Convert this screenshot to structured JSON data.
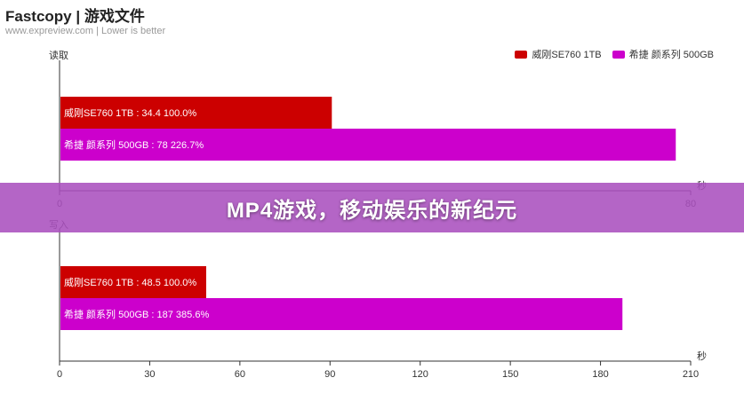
{
  "header": {
    "title": "Fastcopy | 游戏文件",
    "subtitle": "www.expreview.com | Lower is better"
  },
  "legend": [
    {
      "label": "威刚SE760 1TB",
      "color": "#cc0000"
    },
    {
      "label": "希捷 颜系列 500GB",
      "color": "#cc00cc"
    }
  ],
  "banner": {
    "text": "MP4游戏，移动娱乐的新纪元"
  },
  "chart_data": [
    {
      "type": "bar",
      "orientation": "horizontal",
      "title": "读取",
      "xlabel": "秒",
      "xlim": [
        0,
        80
      ],
      "xticks": [
        0,
        80
      ],
      "series": [
        {
          "name": "威刚SE760 1TB",
          "value": 34.4,
          "label": "威刚SE760 1TB : 34.4  100.0%",
          "color": "#cc0000"
        },
        {
          "name": "希捷 颜系列 500GB",
          "value": 78,
          "label": "希捷 颜系列 500GB : 78  226.7%",
          "color": "#cc00cc"
        }
      ]
    },
    {
      "type": "bar",
      "orientation": "horizontal",
      "title": "写入",
      "xlabel": "秒",
      "xlim": [
        0,
        210
      ],
      "xticks": [
        0,
        30,
        60,
        90,
        120,
        150,
        180,
        210
      ],
      "series": [
        {
          "name": "威刚SE760 1TB",
          "value": 48.5,
          "label": "威刚SE760 1TB : 48.5  100.0%",
          "color": "#cc0000"
        },
        {
          "name": "希捷 颜系列 500GB",
          "value": 187,
          "label": "希捷 颜系列 500GB : 187  385.6%",
          "color": "#cc00cc"
        }
      ]
    }
  ]
}
